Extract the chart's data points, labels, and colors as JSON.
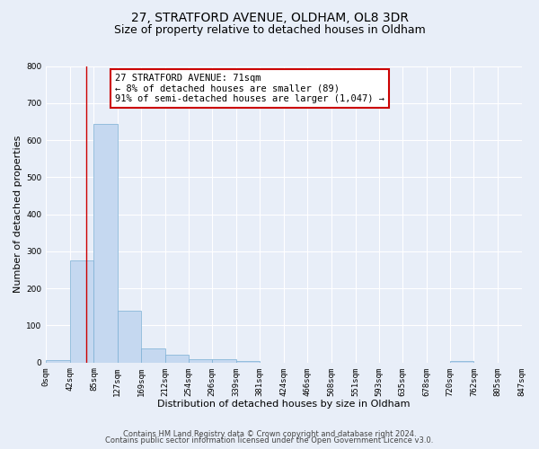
{
  "title": "27, STRATFORD AVENUE, OLDHAM, OL8 3DR",
  "subtitle": "Size of property relative to detached houses in Oldham",
  "xlabel": "Distribution of detached houses by size in Oldham",
  "ylabel": "Number of detached properties",
  "bin_edges": [
    0,
    42,
    85,
    127,
    169,
    212,
    254,
    296,
    339,
    381,
    424,
    466,
    508,
    551,
    593,
    635,
    678,
    720,
    762,
    805,
    847
  ],
  "bar_heights": [
    7,
    275,
    643,
    140,
    38,
    20,
    10,
    8,
    5,
    0,
    0,
    0,
    0,
    0,
    0,
    0,
    0,
    5,
    0,
    0
  ],
  "bar_color": "#c5d8f0",
  "bar_edge_color": "#7aafd4",
  "vline_x": 71,
  "vline_color": "#cc0000",
  "ylim": [
    0,
    800
  ],
  "yticks": [
    0,
    100,
    200,
    300,
    400,
    500,
    600,
    700,
    800
  ],
  "tick_labels": [
    "0sqm",
    "42sqm",
    "85sqm",
    "127sqm",
    "169sqm",
    "212sqm",
    "254sqm",
    "296sqm",
    "339sqm",
    "381sqm",
    "424sqm",
    "466sqm",
    "508sqm",
    "551sqm",
    "593sqm",
    "635sqm",
    "678sqm",
    "720sqm",
    "762sqm",
    "805sqm",
    "847sqm"
  ],
  "annotation_text": "27 STRATFORD AVENUE: 71sqm\n← 8% of detached houses are smaller (89)\n91% of semi-detached houses are larger (1,047) →",
  "annotation_box_color": "#ffffff",
  "annotation_box_edge": "#cc0000",
  "footer1": "Contains HM Land Registry data © Crown copyright and database right 2024.",
  "footer2": "Contains public sector information licensed under the Open Government Licence v3.0.",
  "bg_color": "#e8eef8",
  "grid_color": "#ffffff",
  "title_fontsize": 10,
  "subtitle_fontsize": 9,
  "label_fontsize": 8,
  "tick_fontsize": 6.5,
  "footer_fontsize": 6,
  "annot_fontsize": 7.5
}
